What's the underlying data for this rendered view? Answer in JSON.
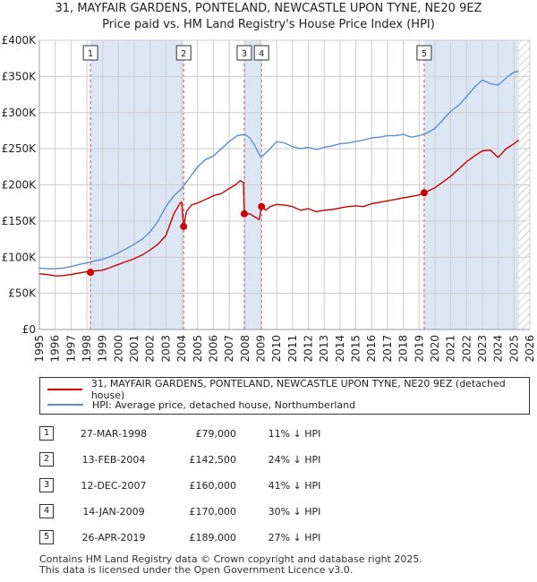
{
  "header": {
    "title_line1": "31, MAYFAIR GARDENS, PONTELAND, NEWCASTLE UPON TYNE, NE20 9EZ",
    "title_line2": "Price paid vs. HM Land Registry's House Price Index (HPI)"
  },
  "colors": {
    "property": "#cc0000",
    "hpi": "#5b8fd0",
    "shade": "#dde6f5",
    "grid": "#cccccc"
  },
  "chart_data": {
    "type": "line",
    "title": "Price paid vs. HM Land Registry's House Price Index (HPI)",
    "xlabel": "",
    "ylabel": "",
    "xlim": [
      1995,
      2026
    ],
    "ylim": [
      0,
      400000
    ],
    "y_ticks": [
      0,
      50000,
      100000,
      150000,
      200000,
      250000,
      300000,
      350000,
      400000
    ],
    "y_tick_labels": [
      "£0",
      "£50K",
      "£100K",
      "£150K",
      "£200K",
      "£250K",
      "£300K",
      "£350K",
      "£400K"
    ],
    "x_ticks": [
      1995,
      1996,
      1997,
      1998,
      1999,
      2000,
      2001,
      2002,
      2003,
      2004,
      2005,
      2006,
      2007,
      2008,
      2009,
      2010,
      2011,
      2012,
      2013,
      2014,
      2015,
      2016,
      2017,
      2018,
      2019,
      2020,
      2021,
      2022,
      2023,
      2024,
      2025,
      2026
    ],
    "x_tick_labels": [
      "1995",
      "1996",
      "1997",
      "1998",
      "1999",
      "2000",
      "2001",
      "2002",
      "2003",
      "2004",
      "2005",
      "2006",
      "2007",
      "2008",
      "2009",
      "2010",
      "2011",
      "2012",
      "2013",
      "2014",
      "2015",
      "2016",
      "2017",
      "2018",
      "2019",
      "2020",
      "2021",
      "2022",
      "2023",
      "2024",
      "2025",
      "2026"
    ],
    "grid": true,
    "shaded_ranges": [
      [
        1998.23,
        2004.12
      ],
      [
        2007.95,
        2009.04
      ],
      [
        2019.32,
        2025.3
      ]
    ],
    "hatched_range": [
      2025.3,
      2026
    ],
    "series": [
      {
        "name": "31, MAYFAIR GARDENS, PONTELAND, NEWCASTLE UPON TYNE, NE20 9EZ (detached house)",
        "x": [
          1995,
          1995.5,
          1996,
          1996.5,
          1997,
          1997.5,
          1998.0,
          1998.23,
          1998.5,
          1999,
          1999.5,
          2000,
          2000.5,
          2001,
          2001.5,
          2002,
          2002.5,
          2003,
          2003.5,
          2003.9,
          2004.0,
          2004.12,
          2004.3,
          2004.6,
          2005,
          2005.5,
          2006,
          2006.5,
          2007,
          2007.4,
          2007.7,
          2007.9,
          2007.95,
          2008.3,
          2008.6,
          2008.9,
          2009.04,
          2009.3,
          2009.6,
          2010,
          2010.5,
          2011,
          2011.5,
          2012,
          2012.5,
          2013,
          2013.5,
          2014,
          2014.5,
          2015,
          2015.5,
          2016,
          2016.5,
          2017,
          2017.5,
          2018,
          2018.5,
          2019,
          2019.32,
          2019.6,
          2020,
          2020.5,
          2021,
          2021.5,
          2022,
          2022.5,
          2023,
          2023.5,
          2024,
          2024.5,
          2025,
          2025.3
        ],
        "values": [
          77000,
          76000,
          74000,
          74500,
          76000,
          78000,
          80000,
          79000,
          81000,
          82000,
          86000,
          90000,
          94000,
          98000,
          103000,
          110000,
          118000,
          130000,
          160000,
          175000,
          176000,
          142500,
          163000,
          172000,
          175000,
          180000,
          185000,
          188000,
          195000,
          200000,
          206000,
          203000,
          160000,
          160000,
          156000,
          152000,
          170000,
          165000,
          170000,
          173000,
          172000,
          170000,
          165000,
          167000,
          163000,
          165000,
          166000,
          168000,
          170000,
          171000,
          170000,
          174000,
          176000,
          178000,
          180000,
          182000,
          184000,
          186000,
          189000,
          192000,
          196000,
          204000,
          212000,
          222000,
          232000,
          240000,
          247000,
          248000,
          238000,
          250000,
          257000,
          262000
        ]
      },
      {
        "name": "HPI: Average price, detached house, Northumberland",
        "x": [
          1995,
          1995.5,
          1996,
          1996.5,
          1997,
          1997.5,
          1998,
          1998.5,
          1999,
          1999.5,
          2000,
          2000.5,
          2001,
          2001.5,
          2002,
          2002.5,
          2003,
          2003.5,
          2004,
          2004.5,
          2005,
          2005.5,
          2006,
          2006.5,
          2007,
          2007.5,
          2008,
          2008.3,
          2008.6,
          2009,
          2009.5,
          2010,
          2010.5,
          2011,
          2011.5,
          2012,
          2012.5,
          2013,
          2013.5,
          2014,
          2014.5,
          2015,
          2015.5,
          2016,
          2016.5,
          2017,
          2017.5,
          2018,
          2018.5,
          2019,
          2019.5,
          2020,
          2020.5,
          2021,
          2021.5,
          2022,
          2022.5,
          2023,
          2023.5,
          2024,
          2024.5,
          2025,
          2025.3
        ],
        "values": [
          85000,
          84000,
          84000,
          85000,
          87000,
          90000,
          92000,
          95000,
          97000,
          101000,
          106000,
          112000,
          118000,
          125000,
          135000,
          150000,
          170000,
          185000,
          195000,
          210000,
          225000,
          235000,
          240000,
          250000,
          260000,
          268000,
          270000,
          265000,
          255000,
          238000,
          248000,
          260000,
          258000,
          253000,
          250000,
          252000,
          249000,
          252000,
          254000,
          257000,
          258000,
          260000,
          262000,
          265000,
          266000,
          268000,
          268000,
          270000,
          266000,
          268000,
          272000,
          278000,
          290000,
          302000,
          310000,
          322000,
          335000,
          345000,
          340000,
          338000,
          348000,
          356000,
          357000
        ]
      }
    ],
    "transactions": [
      {
        "id": "1",
        "x": 1998.23,
        "price": 79000
      },
      {
        "id": "2",
        "x": 2004.12,
        "price": 142500
      },
      {
        "id": "3",
        "x": 2007.95,
        "price": 160000
      },
      {
        "id": "4",
        "x": 2009.04,
        "price": 170000
      },
      {
        "id": "5",
        "x": 2019.32,
        "price": 189000
      }
    ]
  },
  "legend": {
    "property_label": "31, MAYFAIR GARDENS, PONTELAND, NEWCASTLE UPON TYNE, NE20 9EZ (detached house)",
    "hpi_label": "HPI: Average price, detached house, Northumberland"
  },
  "table": [
    {
      "num": "1",
      "date": "27-MAR-1998",
      "price": "£79,000",
      "hpi": "11% ↓ HPI"
    },
    {
      "num": "2",
      "date": "13-FEB-2004",
      "price": "£142,500",
      "hpi": "24% ↓ HPI"
    },
    {
      "num": "3",
      "date": "12-DEC-2007",
      "price": "£160,000",
      "hpi": "41% ↓ HPI"
    },
    {
      "num": "4",
      "date": "14-JAN-2009",
      "price": "£170,000",
      "hpi": "30% ↓ HPI"
    },
    {
      "num": "5",
      "date": "26-APR-2019",
      "price": "£189,000",
      "hpi": "27% ↓ HPI"
    }
  ],
  "footer": {
    "line1": "Contains HM Land Registry data © Crown copyright and database right 2025.",
    "line2": "This data is licensed under the Open Government Licence v3.0."
  }
}
